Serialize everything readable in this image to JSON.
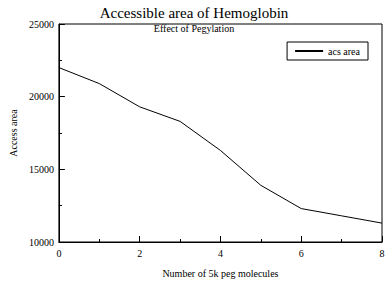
{
  "chart_data": {
    "type": "line",
    "title": "Accessible area of Hemoglobin",
    "subtitle": "Effect of Pegylation",
    "x_label": "Number of 5k peg molecules",
    "y_label": "Access area",
    "x": [
      0,
      1,
      2,
      3,
      4,
      5,
      6,
      7,
      8
    ],
    "series": [
      {
        "name": "acs area",
        "color": "#000000",
        "values": [
          22000,
          20900,
          19300,
          18300,
          16300,
          13900,
          12300,
          11800,
          11300
        ]
      }
    ],
    "xlim": [
      0,
      8
    ],
    "xticks": [
      0,
      2,
      4,
      6,
      8
    ],
    "ylim": [
      10000,
      25000
    ],
    "yticks": [
      10000,
      15000,
      20000,
      25000
    ],
    "grid": false,
    "legend": "upper right"
  }
}
